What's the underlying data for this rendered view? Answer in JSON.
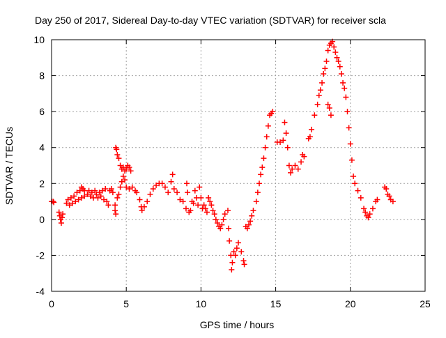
{
  "chart_data": {
    "type": "scatter",
    "title": "Day 250 of 2017, Sidereal Day-to-day VTEC variation (SDTVAR) for receiver scla",
    "xlabel": "GPS time / hours",
    "ylabel": "SDTVAR / TECUs",
    "xlim": [
      0,
      25
    ],
    "ylim": [
      -4,
      10
    ],
    "xticks": [
      0,
      5,
      10,
      15,
      20,
      25
    ],
    "yticks": [
      -4,
      -2,
      0,
      2,
      4,
      6,
      8,
      10
    ],
    "grid": true,
    "marker": "plus",
    "color": "#ff0000",
    "series": [
      {
        "name": "SDTVAR",
        "points": [
          [
            0.0,
            1.0
          ],
          [
            0.1,
            1.0
          ],
          [
            0.15,
            0.95
          ],
          [
            0.5,
            0.4
          ],
          [
            0.55,
            0.2
          ],
          [
            0.6,
            0.0
          ],
          [
            0.65,
            -0.2
          ],
          [
            0.7,
            0.1
          ],
          [
            0.75,
            0.3
          ],
          [
            1.0,
            0.9
          ],
          [
            1.1,
            1.1
          ],
          [
            1.2,
            0.8
          ],
          [
            1.3,
            1.2
          ],
          [
            1.4,
            0.9
          ],
          [
            1.5,
            1.3
          ],
          [
            1.6,
            1.0
          ],
          [
            1.7,
            1.5
          ],
          [
            1.8,
            1.1
          ],
          [
            1.9,
            1.6
          ],
          [
            2.0,
            1.8
          ],
          [
            2.1,
            1.7
          ],
          [
            2.2,
            1.6
          ],
          [
            2.0,
            1.2
          ],
          [
            2.2,
            1.3
          ],
          [
            2.4,
            1.4
          ],
          [
            2.5,
            1.6
          ],
          [
            2.6,
            1.3
          ],
          [
            2.7,
            1.5
          ],
          [
            2.8,
            1.2
          ],
          [
            2.9,
            1.6
          ],
          [
            3.0,
            1.4
          ],
          [
            3.1,
            1.2
          ],
          [
            3.2,
            1.5
          ],
          [
            3.3,
            1.3
          ],
          [
            3.4,
            1.6
          ],
          [
            3.5,
            1.1
          ],
          [
            3.6,
            1.7
          ],
          [
            3.7,
            1.0
          ],
          [
            3.8,
            0.8
          ],
          [
            3.9,
            1.6
          ],
          [
            4.0,
            1.7
          ],
          [
            4.1,
            1.5
          ],
          [
            4.25,
            0.8
          ],
          [
            4.25,
            0.5
          ],
          [
            4.3,
            0.3
          ],
          [
            4.3,
            4.0
          ],
          [
            4.35,
            3.9
          ],
          [
            4.4,
            3.6
          ],
          [
            4.5,
            3.4
          ],
          [
            4.6,
            3.0
          ],
          [
            4.7,
            2.8
          ],
          [
            4.8,
            2.9
          ],
          [
            4.9,
            2.7
          ],
          [
            5.0,
            2.8
          ],
          [
            5.1,
            3.0
          ],
          [
            5.2,
            2.9
          ],
          [
            5.3,
            2.7
          ],
          [
            4.4,
            1.2
          ],
          [
            4.5,
            1.4
          ],
          [
            4.6,
            1.8
          ],
          [
            4.7,
            2.1
          ],
          [
            4.8,
            2.4
          ],
          [
            4.9,
            2.2
          ],
          [
            5.0,
            1.8
          ],
          [
            5.2,
            1.7
          ],
          [
            5.4,
            1.8
          ],
          [
            5.6,
            1.6
          ],
          [
            5.7,
            1.5
          ],
          [
            5.9,
            1.1
          ],
          [
            6.0,
            0.7
          ],
          [
            6.05,
            0.5
          ],
          [
            6.2,
            0.7
          ],
          [
            6.4,
            1.0
          ],
          [
            6.6,
            1.4
          ],
          [
            6.8,
            1.7
          ],
          [
            7.0,
            1.9
          ],
          [
            7.2,
            2.0
          ],
          [
            7.4,
            2.0
          ],
          [
            7.6,
            1.8
          ],
          [
            7.8,
            1.5
          ],
          [
            8.0,
            2.1
          ],
          [
            8.1,
            2.5
          ],
          [
            8.2,
            1.7
          ],
          [
            8.4,
            1.5
          ],
          [
            8.6,
            1.1
          ],
          [
            8.8,
            1.0
          ],
          [
            9.0,
            0.6
          ],
          [
            9.05,
            2.0
          ],
          [
            9.1,
            1.5
          ],
          [
            9.2,
            0.4
          ],
          [
            9.3,
            0.5
          ],
          [
            9.4,
            1.0
          ],
          [
            9.5,
            0.9
          ],
          [
            9.6,
            1.6
          ],
          [
            9.7,
            1.2
          ],
          [
            9.8,
            0.8
          ],
          [
            9.9,
            1.8
          ],
          [
            10.0,
            1.2
          ],
          [
            10.1,
            0.6
          ],
          [
            10.2,
            0.8
          ],
          [
            10.3,
            0.6
          ],
          [
            10.4,
            0.4
          ],
          [
            10.5,
            1.2
          ],
          [
            10.6,
            1.0
          ],
          [
            10.7,
            0.8
          ],
          [
            10.8,
            0.5
          ],
          [
            10.9,
            0.3
          ],
          [
            11.0,
            0.0
          ],
          [
            11.1,
            -0.2
          ],
          [
            11.2,
            -0.4
          ],
          [
            11.3,
            -0.5
          ],
          [
            11.4,
            -0.3
          ],
          [
            11.5,
            0.0
          ],
          [
            11.6,
            0.3
          ],
          [
            11.8,
            0.5
          ],
          [
            11.85,
            -0.5
          ],
          [
            11.9,
            -1.2
          ],
          [
            12.0,
            -2.0
          ],
          [
            12.05,
            -2.8
          ],
          [
            12.1,
            -2.4
          ],
          [
            12.2,
            -1.8
          ],
          [
            12.3,
            -2.0
          ],
          [
            12.4,
            -1.6
          ],
          [
            12.5,
            -1.3
          ],
          [
            12.7,
            -1.8
          ],
          [
            12.85,
            -2.3
          ],
          [
            12.9,
            -2.5
          ],
          [
            13.0,
            -0.4
          ],
          [
            13.1,
            -0.5
          ],
          [
            13.2,
            -0.3
          ],
          [
            13.3,
            -0.1
          ],
          [
            13.4,
            0.2
          ],
          [
            13.5,
            0.5
          ],
          [
            13.7,
            1.0
          ],
          [
            13.8,
            1.5
          ],
          [
            13.9,
            2.0
          ],
          [
            14.0,
            2.5
          ],
          [
            14.1,
            2.9
          ],
          [
            14.2,
            3.4
          ],
          [
            14.3,
            4.0
          ],
          [
            14.4,
            4.6
          ],
          [
            14.5,
            5.2
          ],
          [
            14.6,
            5.8
          ],
          [
            14.7,
            5.9
          ],
          [
            14.8,
            6.0
          ],
          [
            15.1,
            4.3
          ],
          [
            15.3,
            4.3
          ],
          [
            15.5,
            4.4
          ],
          [
            15.6,
            5.4
          ],
          [
            15.7,
            4.8
          ],
          [
            15.8,
            4.0
          ],
          [
            15.9,
            3.0
          ],
          [
            16.0,
            2.6
          ],
          [
            16.1,
            2.8
          ],
          [
            16.3,
            3.0
          ],
          [
            16.5,
            2.8
          ],
          [
            16.7,
            3.2
          ],
          [
            16.8,
            3.6
          ],
          [
            16.9,
            3.5
          ],
          [
            17.2,
            4.5
          ],
          [
            17.3,
            4.6
          ],
          [
            17.4,
            5.0
          ],
          [
            17.6,
            5.8
          ],
          [
            17.8,
            6.4
          ],
          [
            17.9,
            6.9
          ],
          [
            18.0,
            7.2
          ],
          [
            18.1,
            7.6
          ],
          [
            18.2,
            8.1
          ],
          [
            18.3,
            8.4
          ],
          [
            18.4,
            8.8
          ],
          [
            18.5,
            9.4
          ],
          [
            18.6,
            9.7
          ],
          [
            18.7,
            9.8
          ],
          [
            18.8,
            9.9
          ],
          [
            18.9,
            9.6
          ],
          [
            18.5,
            6.4
          ],
          [
            18.6,
            6.2
          ],
          [
            18.7,
            5.8
          ],
          [
            19.0,
            9.3
          ],
          [
            19.1,
            9.0
          ],
          [
            19.2,
            8.8
          ],
          [
            19.3,
            8.5
          ],
          [
            19.4,
            8.1
          ],
          [
            19.5,
            7.6
          ],
          [
            19.6,
            7.3
          ],
          [
            19.7,
            6.8
          ],
          [
            19.8,
            6.0
          ],
          [
            19.9,
            5.1
          ],
          [
            20.0,
            4.2
          ],
          [
            20.1,
            3.3
          ],
          [
            20.2,
            2.4
          ],
          [
            20.3,
            2.0
          ],
          [
            20.5,
            1.6
          ],
          [
            20.7,
            1.2
          ],
          [
            20.9,
            0.6
          ],
          [
            21.0,
            0.4
          ],
          [
            21.1,
            0.2
          ],
          [
            21.2,
            0.1
          ],
          [
            21.3,
            0.3
          ],
          [
            21.5,
            0.6
          ],
          [
            21.7,
            1.0
          ],
          [
            21.8,
            1.1
          ],
          [
            22.3,
            1.8
          ],
          [
            22.4,
            1.7
          ],
          [
            22.5,
            1.4
          ],
          [
            22.6,
            1.3
          ],
          [
            22.7,
            1.1
          ],
          [
            22.85,
            1.0
          ]
        ]
      }
    ]
  }
}
